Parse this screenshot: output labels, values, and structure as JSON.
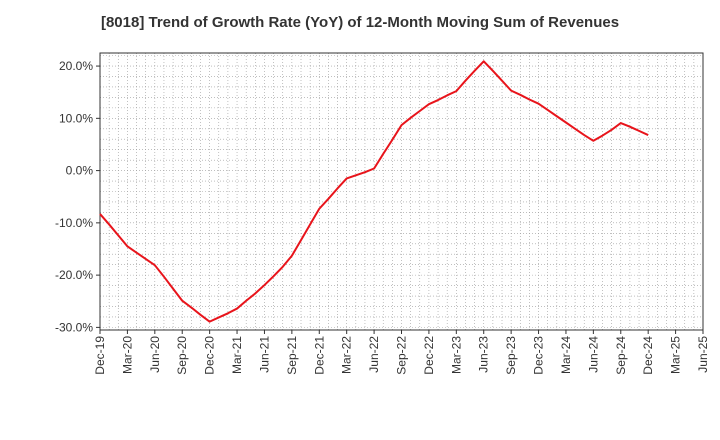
{
  "chart_data": {
    "type": "line",
    "title": "[8018]  Trend of Growth Rate (YoY) of 12-Month Moving Sum of Revenues",
    "xlabel": "",
    "ylabel": "",
    "x_tick_labels": [
      "Dec-19",
      "Mar-20",
      "Jun-20",
      "Sep-20",
      "Dec-20",
      "Mar-21",
      "Jun-21",
      "Sep-21",
      "Dec-21",
      "Mar-22",
      "Jun-22",
      "Sep-22",
      "Dec-22",
      "Mar-23",
      "Jun-23",
      "Sep-23",
      "Dec-23",
      "Mar-24",
      "Jun-24",
      "Sep-24",
      "Dec-24",
      "Mar-25",
      "Jun-25"
    ],
    "y_tick_labels": [
      "20.0%",
      "10.0%",
      "0.0%",
      "-10.0%",
      "-20.0%",
      "-30.0%"
    ],
    "y_ticks": [
      20,
      10,
      0,
      -10,
      -20,
      -30
    ],
    "ylim": [
      -30.5,
      22.5
    ],
    "grid": true,
    "colors": {
      "line": "#e8141b",
      "grid": "#999999",
      "axis": "#333333"
    },
    "series": [
      {
        "x": [
          "2019-12",
          "2020-01",
          "2020-02",
          "2020-03",
          "2020-04",
          "2020-05",
          "2020-06",
          "2020-07",
          "2020-08",
          "2020-09",
          "2020-10",
          "2020-11",
          "2020-12",
          "2021-01",
          "2021-02",
          "2021-03",
          "2021-04",
          "2021-05",
          "2021-06",
          "2021-07",
          "2021-08",
          "2021-09",
          "2021-10",
          "2021-11",
          "2021-12",
          "2022-01",
          "2022-02",
          "2022-03",
          "2022-04",
          "2022-05",
          "2022-06",
          "2022-07",
          "2022-08",
          "2022-09",
          "2022-10",
          "2022-11",
          "2022-12",
          "2023-01",
          "2023-02",
          "2023-03",
          "2023-04",
          "2023-05",
          "2023-06",
          "2023-07",
          "2023-08",
          "2023-09",
          "2023-10",
          "2023-11",
          "2023-12",
          "2024-01",
          "2024-02",
          "2024-03",
          "2024-04",
          "2024-05",
          "2024-06",
          "2024-07",
          "2024-08",
          "2024-09",
          "2024-10",
          "2024-11",
          "2024-12"
        ],
        "values": [
          -8.3,
          -10.3,
          -12.4,
          -14.5,
          -15.7,
          -16.9,
          -18.1,
          -20.3,
          -22.6,
          -24.9,
          -26.2,
          -27.6,
          -28.9,
          -28.1,
          -27.3,
          -26.4,
          -24.9,
          -23.5,
          -21.9,
          -20.2,
          -18.4,
          -16.3,
          -13.3,
          -10.3,
          -7.3,
          -5.4,
          -3.4,
          -1.5,
          -0.9,
          -0.3,
          0.4,
          3.2,
          5.9,
          8.7,
          10.1,
          11.4,
          12.7,
          13.5,
          14.4,
          15.2,
          17.2,
          19.1,
          20.9,
          19.1,
          17.2,
          15.3,
          14.5,
          13.6,
          12.8,
          11.6,
          10.4,
          9.2,
          8.0,
          6.8,
          5.7,
          6.7,
          7.8,
          9.1,
          8.4,
          7.6,
          6.8
        ]
      }
    ]
  }
}
